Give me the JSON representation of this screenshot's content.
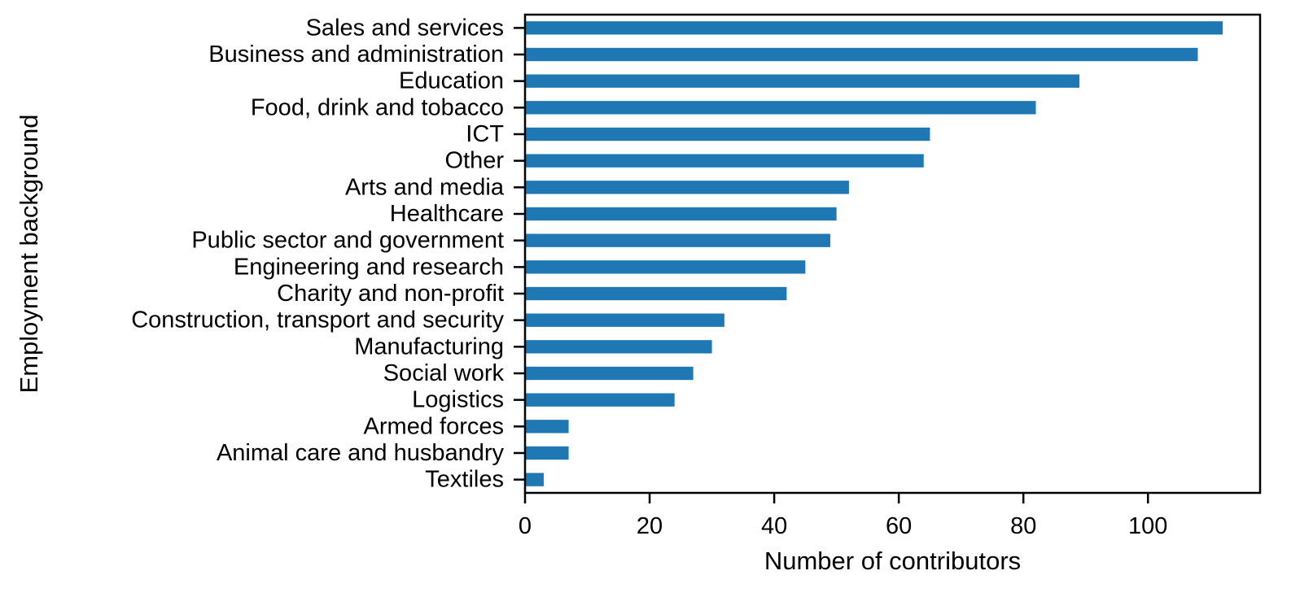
{
  "chart_data": {
    "type": "bar",
    "orientation": "horizontal",
    "title": "",
    "xlabel": "Number of contributors",
    "ylabel": "Employment background",
    "categories": [
      "Sales and services",
      "Business and administration",
      "Education",
      "Food, drink and tobacco",
      "ICT",
      "Other",
      "Arts and media",
      "Healthcare",
      "Public sector and government",
      "Engineering and research",
      "Charity and non-profit",
      "Construction, transport and security",
      "Manufacturing",
      "Social work",
      "Logistics",
      "Armed forces",
      "Animal care and husbandry",
      "Textiles"
    ],
    "values": [
      112,
      108,
      89,
      82,
      65,
      64,
      52,
      50,
      49,
      45,
      42,
      32,
      30,
      27,
      24,
      7,
      7,
      3
    ],
    "xlim": [
      0,
      118
    ],
    "xticks": [
      0,
      20,
      40,
      60,
      80,
      100
    ],
    "xtick_labels": [
      "0",
      "20",
      "40",
      "60",
      "80",
      "100"
    ],
    "bar_color": "#1f77b4",
    "grid": false,
    "legend": "none"
  }
}
